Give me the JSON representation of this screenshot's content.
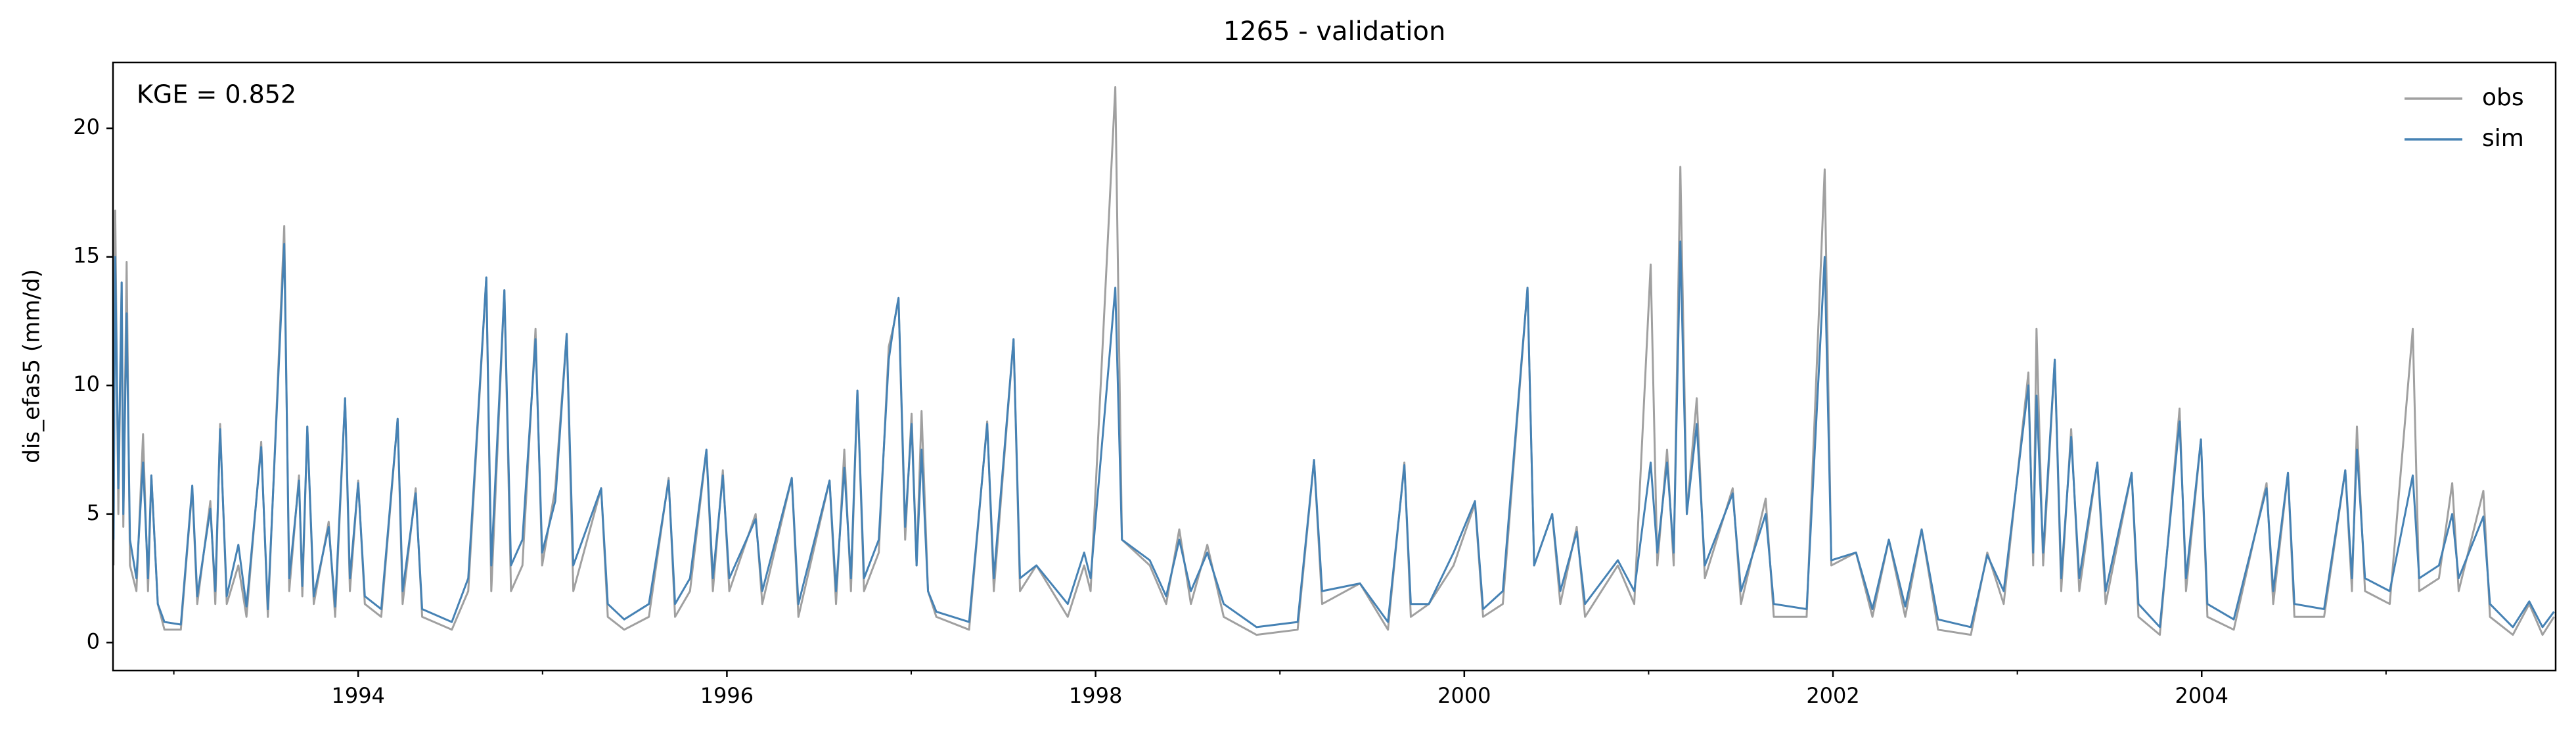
{
  "chart_data": {
    "type": "line",
    "title": "1265 - validation",
    "ylabel": "dis_efas5 (mm/d)",
    "annotation": "KGE = 0.852",
    "legend": "upper right",
    "xlim": [
      1992.67,
      2005.92
    ],
    "xticks": [
      1994,
      1996,
      1998,
      2000,
      2002,
      2004
    ],
    "xminorticks": [
      1993,
      1995,
      1997,
      1999,
      2001,
      2003,
      2005
    ],
    "ylim": [
      -1.09,
      22.56
    ],
    "yticks": [
      0,
      5,
      10,
      15,
      20
    ],
    "x": [
      1992.673,
      1992.682,
      1992.699,
      1992.717,
      1992.726,
      1992.744,
      1992.762,
      1992.797,
      1992.833,
      1992.86,
      1992.878,
      1992.913,
      1992.949,
      1993.038,
      1993.1,
      1993.127,
      1993.198,
      1993.225,
      1993.251,
      1993.287,
      1993.35,
      1993.394,
      1993.474,
      1993.51,
      1993.599,
      1993.626,
      1993.679,
      1993.697,
      1993.724,
      1993.759,
      1993.84,
      1993.875,
      1993.929,
      1993.955,
      1994.0,
      1994.036,
      1994.125,
      1994.214,
      1994.241,
      1994.312,
      1994.347,
      1994.508,
      1994.597,
      1994.695,
      1994.722,
      1994.793,
      1994.829,
      1994.891,
      1994.962,
      1994.998,
      1995.069,
      1995.131,
      1995.167,
      1995.318,
      1995.354,
      1995.443,
      1995.577,
      1995.684,
      1995.719,
      1995.8,
      1995.889,
      1995.924,
      1995.978,
      1996.013,
      1996.156,
      1996.192,
      1996.352,
      1996.388,
      1996.557,
      1996.592,
      1996.637,
      1996.673,
      1996.708,
      1996.744,
      1996.824,
      1996.878,
      1996.904,
      1996.931,
      1996.967,
      1997.002,
      1997.029,
      1997.056,
      1997.091,
      1997.136,
      1997.314,
      1997.412,
      1997.448,
      1997.555,
      1997.59,
      1997.679,
      1997.849,
      1997.938,
      1997.973,
      1998.107,
      1998.143,
      1998.294,
      1998.383,
      1998.454,
      1998.517,
      1998.606,
      1998.695,
      1998.873,
      1999.096,
      1999.185,
      1999.229,
      1999.434,
      1999.586,
      1999.675,
      1999.71,
      1999.808,
      1999.942,
      2000.058,
      2000.102,
      2000.209,
      2000.343,
      2000.379,
      2000.477,
      2000.521,
      2000.61,
      2000.655,
      2000.833,
      2000.922,
      2001.011,
      2001.047,
      2001.1,
      2001.136,
      2001.172,
      2001.207,
      2001.261,
      2001.305,
      2001.456,
      2001.501,
      2001.635,
      2001.679,
      2001.857,
      2001.955,
      2001.991,
      2002.125,
      2002.214,
      2002.303,
      2002.392,
      2002.481,
      2002.57,
      2002.748,
      2002.837,
      2002.926,
      2003.06,
      2003.086,
      2003.104,
      2003.14,
      2003.203,
      2003.238,
      2003.292,
      2003.336,
      2003.434,
      2003.479,
      2003.62,
      2003.657,
      2003.773,
      2003.88,
      2003.915,
      2003.996,
      2004.031,
      2004.174,
      2004.352,
      2004.388,
      2004.468,
      2004.503,
      2004.664,
      2004.779,
      2004.815,
      2004.842,
      2004.886,
      2005.02,
      2005.145,
      2005.18,
      2005.287,
      2005.359,
      2005.394,
      2005.528,
      2005.564,
      2005.688,
      2005.777,
      2005.849,
      2005.911
    ],
    "series": [
      {
        "name": "obs",
        "color": "#a0a0a0",
        "values": [
          3,
          16.8,
          5,
          14,
          4.5,
          14.8,
          3,
          2,
          8.1,
          2,
          6.5,
          1.5,
          0.5,
          0.5,
          6,
          1.5,
          5.5,
          1.5,
          8.5,
          1.5,
          3,
          1,
          7.8,
          1,
          16.2,
          2,
          6.5,
          1.8,
          8.4,
          1.5,
          4.7,
          1,
          9.5,
          2,
          6.3,
          1.5,
          1,
          8.7,
          1.5,
          6,
          1,
          0.5,
          2,
          14.2,
          2,
          13.7,
          2,
          3,
          12.2,
          3,
          6,
          12,
          2,
          6,
          1,
          0.5,
          1,
          6.4,
          1,
          2,
          7.5,
          2,
          6.7,
          2,
          5,
          1.5,
          6.4,
          1,
          6.3,
          1.5,
          7.5,
          2,
          9.8,
          2,
          3.5,
          11.5,
          12.3,
          13.4,
          4,
          8.9,
          3,
          9,
          2,
          1,
          0.5,
          8.6,
          2,
          11.8,
          2,
          3,
          1,
          3,
          2,
          21.6,
          4,
          3,
          1.5,
          4.4,
          1.5,
          3.8,
          1,
          0.3,
          0.5,
          7.1,
          1.5,
          2.3,
          0.5,
          7,
          1,
          1.5,
          3,
          5.4,
          1,
          1.5,
          13.8,
          3,
          5,
          1.5,
          4.5,
          1,
          3,
          1.5,
          14.7,
          3,
          7.5,
          3,
          18.5,
          5,
          9.5,
          2.5,
          6,
          1.5,
          5.6,
          1,
          1,
          18.4,
          3,
          3.5,
          1,
          4,
          1,
          4.4,
          0.5,
          0.3,
          3.5,
          1.5,
          10.5,
          3,
          12.2,
          3,
          11,
          2,
          8.3,
          2,
          7,
          1.5,
          6.6,
          1,
          0.3,
          9.1,
          2,
          7.9,
          1,
          0.5,
          6.2,
          1.5,
          6.6,
          1,
          1,
          6.7,
          2,
          8.4,
          2,
          1.5,
          12.2,
          2,
          2.5,
          6.2,
          2,
          5.9,
          1,
          0.3,
          1.5,
          0.3,
          1
        ]
      },
      {
        "name": "sim",
        "color": "#4682b4",
        "values": [
          4,
          15,
          6,
          14,
          5,
          12.8,
          4,
          2.5,
          7,
          2.5,
          6.5,
          1.5,
          0.8,
          0.7,
          6.1,
          1.8,
          5.2,
          2,
          8.3,
          1.8,
          3.8,
          1.4,
          7.6,
          1.3,
          15.5,
          2.5,
          6.3,
          2.2,
          8.4,
          1.8,
          4.5,
          1.4,
          9.5,
          2.5,
          6.2,
          1.8,
          1.3,
          8.7,
          2,
          5.8,
          1.3,
          0.8,
          2.5,
          14.2,
          3,
          13.7,
          3,
          4,
          11.8,
          3.5,
          5.5,
          12,
          3,
          6,
          1.5,
          0.9,
          1.5,
          6.3,
          1.5,
          2.5,
          7.5,
          2.5,
          6.5,
          2.5,
          4.8,
          2,
          6.4,
          1.5,
          6.3,
          2,
          6.8,
          2.5,
          9.8,
          2.5,
          4,
          11,
          12.3,
          13.4,
          4.5,
          8.5,
          3,
          7.5,
          2,
          1.2,
          0.8,
          8.5,
          2.5,
          11.8,
          2.5,
          3,
          1.5,
          3.5,
          2.5,
          13.8,
          4,
          3.2,
          1.8,
          4,
          2,
          3.5,
          1.5,
          0.6,
          0.8,
          7.1,
          2,
          2.3,
          0.8,
          6.9,
          1.5,
          1.5,
          3.5,
          5.5,
          1.3,
          2,
          13.8,
          3,
          5,
          2,
          4.3,
          1.5,
          3.2,
          2,
          7,
          3.5,
          7,
          3.5,
          15.6,
          5,
          8.5,
          3,
          5.8,
          2,
          5,
          1.5,
          1.3,
          15,
          3.2,
          3.5,
          1.3,
          4,
          1.4,
          4.4,
          0.9,
          0.6,
          3.4,
          2,
          10,
          3.5,
          9.6,
          3.5,
          11,
          2.5,
          8,
          2.5,
          7,
          2,
          6.6,
          1.5,
          0.6,
          8.6,
          2.5,
          7.9,
          1.5,
          0.9,
          6,
          2,
          6.6,
          1.5,
          1.3,
          6.7,
          2.5,
          7.5,
          2.5,
          2,
          6.5,
          2.5,
          3,
          5,
          2.5,
          4.9,
          1.5,
          0.6,
          1.6,
          0.6,
          1.2
        ]
      }
    ]
  }
}
